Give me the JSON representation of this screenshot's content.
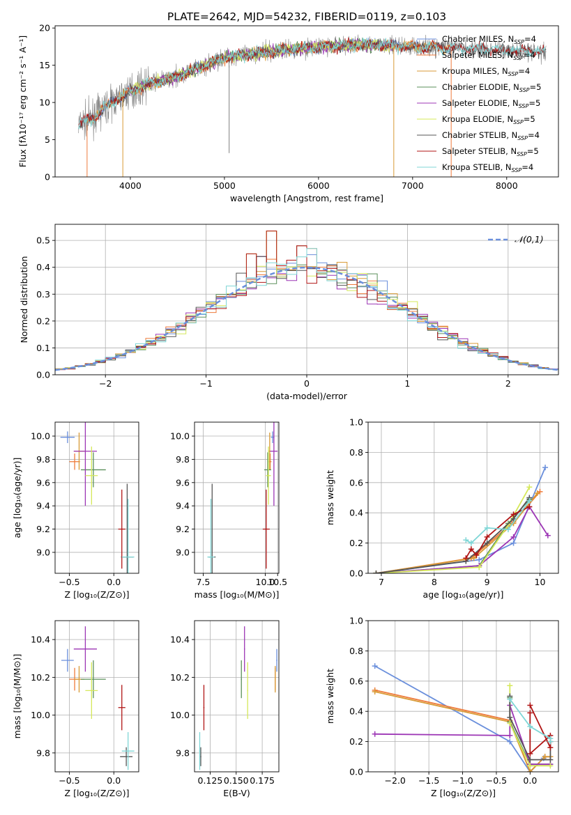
{
  "title": "PLATE=2642, MJD=54232, FIBERID=0119, z=0.103",
  "colors": {
    "Chabrier MILES": "#6a8fdc",
    "Salpeter MILES": "#ee7a3a",
    "Kroupa MILES": "#d89a35",
    "Chabrier ELODIE": "#5a8f5a",
    "Salpeter ELODIE": "#9c35b5",
    "Kroupa ELODIE": "#d5e85a",
    "Chabrier STELIB": "#555555",
    "Salpeter STELIB": "#b01515",
    "Kroupa STELIB": "#7fd6d6",
    "data": "#808080"
  },
  "chart_data": [
    {
      "id": "spectrum",
      "type": "line",
      "xlabel": "wavelength [Angstrom, rest frame]",
      "ylabel": "Flux [fλ10⁻¹⁷ erg cm⁻² s⁻¹ A⁻¹]",
      "xlim": [
        3200,
        8550
      ],
      "ylim": [
        0,
        20.3
      ],
      "xticks": [
        4000,
        5000,
        6000,
        7000,
        8000
      ],
      "yticks": [
        0,
        5,
        10,
        15,
        20
      ],
      "grid": false,
      "legend_position": "right",
      "legend": [
        {
          "name": "Chabrier MILES",
          "nssp": "4"
        },
        {
          "name": "Salpeter MILES",
          "nssp": "4"
        },
        {
          "name": "Kroupa MILES",
          "nssp": "4"
        },
        {
          "name": "Chabrier ELODIE",
          "nssp": "5"
        },
        {
          "name": "Salpeter ELODIE",
          "nssp": "5"
        },
        {
          "name": "Kroupa ELODIE",
          "nssp": "5"
        },
        {
          "name": "Chabrier STELIB",
          "nssp": "4"
        },
        {
          "name": "Salpeter STELIB",
          "nssp": "5"
        },
        {
          "name": "Kroupa STELIB",
          "nssp": "4"
        }
      ],
      "legend_subscript": "SSP",
      "continuum": {
        "x": [
          3450,
          3600,
          3800,
          4000,
          4200,
          4500,
          4800,
          5000,
          5300,
          5600,
          6000,
          6500,
          7000,
          7500,
          8000,
          8400
        ],
        "y": [
          7,
          8,
          10,
          11.5,
          12.5,
          13.5,
          15,
          16,
          16.5,
          17,
          17.5,
          17.8,
          17.5,
          17.3,
          17,
          16.8
        ]
      },
      "data_range": [
        3450,
        8420
      ],
      "model_ranges": {
        "Chabrier MILES": [
          3540,
          7400
        ],
        "Salpeter MILES": [
          3540,
          7400
        ],
        "Kroupa MILES": [
          3540,
          7400
        ],
        "Chabrier ELODIE": [
          4000,
          6800
        ],
        "Salpeter ELODIE": [
          4000,
          6800
        ],
        "Kroupa ELODIE": [
          4000,
          6800
        ],
        "Chabrier STELIB": [
          3450,
          8420
        ],
        "Salpeter STELIB": [
          3450,
          8420
        ],
        "Kroupa STELIB": [
          3450,
          8420
        ]
      },
      "dropouts": [
        {
          "x": 3540,
          "from": 7,
          "to": 0,
          "series": "Salpeter MILES"
        },
        {
          "x": 3920,
          "from": 11,
          "to": 0,
          "series": "Kroupa MILES"
        },
        {
          "x": 6800,
          "from": 17.5,
          "to": 0,
          "series": "Kroupa MILES"
        },
        {
          "x": 7410,
          "from": 17,
          "to": 0,
          "series": "Salpeter MILES"
        },
        {
          "x": 5050,
          "from": 15,
          "to": 3.2,
          "series": "data"
        }
      ]
    },
    {
      "id": "residuals",
      "type": "line",
      "xlabel": "(data-model)/error",
      "ylabel": "Normed distribution",
      "xlim": [
        -2.5,
        2.5
      ],
      "ylim": [
        0,
        0.56
      ],
      "xticks": [
        -2,
        -1,
        0,
        1,
        2
      ],
      "yticks": [
        0.0,
        0.1,
        0.2,
        0.3,
        0.4,
        0.5
      ],
      "grid": true,
      "legend_position": "top-right",
      "legend": [
        {
          "name": "𝒩(0,1)"
        }
      ],
      "bin_width": 0.1,
      "peak_bins": {
        "-0.3": 0.535,
        "0": 0.48,
        "0.1": 0.47,
        "-0.5": 0.45,
        "-0.4": 0.44
      }
    },
    {
      "id": "age-vs-Z",
      "type": "scatter",
      "xlabel": "Z [log₁₀(Z/Z⊙)]",
      "ylabel": "age [log₁₀(age/yr)]",
      "xlim": [
        -0.66,
        0.28
      ],
      "ylim": [
        8.82,
        10.12
      ],
      "xticks": [
        -0.5,
        0.0
      ],
      "yticks": [
        9.0,
        9.2,
        9.4,
        9.6,
        9.8,
        10.0
      ],
      "grid": true,
      "points": [
        {
          "series": "Chabrier MILES",
          "x": -0.52,
          "xerr": 0.08,
          "y": 9.99,
          "yerr": 0.05
        },
        {
          "series": "Salpeter MILES",
          "x": -0.44,
          "xerr": 0.06,
          "y": 9.78,
          "yerr": 0.07
        },
        {
          "series": "Kroupa MILES",
          "x": -0.39,
          "xerr": 0.06,
          "y": 9.87,
          "yerr": 0.16
        },
        {
          "series": "Chabrier ELODIE",
          "x": -0.23,
          "xerr": 0.14,
          "y": 9.71,
          "yerr": 0.15
        },
        {
          "series": "Salpeter ELODIE",
          "x": -0.32,
          "xerr": 0.13,
          "y": 9.87,
          "yerr": 0.47
        },
        {
          "series": "Kroupa ELODIE",
          "x": -0.25,
          "xerr": 0.07,
          "y": 9.66,
          "yerr": 0.25
        },
        {
          "series": "Chabrier STELIB",
          "x": 0.15,
          "xerr": 0.07,
          "y": 8.96,
          "yerr": 0.63
        },
        {
          "series": "Salpeter STELIB",
          "x": 0.09,
          "xerr": 0.04,
          "y": 9.2,
          "yerr": 0.34
        },
        {
          "series": "Kroupa STELIB",
          "x": 0.16,
          "xerr": 0.07,
          "y": 8.96,
          "yerr": 0.5
        }
      ]
    },
    {
      "id": "age-vs-mass",
      "type": "scatter",
      "xlabel": "mass [log₁₀(M/M⊙)]",
      "ylabel": "",
      "xlim": [
        7.15,
        10.55
      ],
      "ylim": [
        8.82,
        10.12
      ],
      "xticks": [
        7.5,
        10.0,
        10.5
      ],
      "yticks": [
        9.0,
        9.2,
        9.4,
        9.6,
        9.8,
        10.0
      ],
      "grid": true,
      "points": [
        {
          "series": "Chabrier MILES",
          "x": 10.3,
          "xerr": 0.07,
          "y": 9.99,
          "yerr": 0.05
        },
        {
          "series": "Salpeter MILES",
          "x": 10.2,
          "xerr": 0.05,
          "y": 9.78,
          "yerr": 0.07
        },
        {
          "series": "Kroupa MILES",
          "x": 10.18,
          "xerr": 0.05,
          "y": 9.87,
          "yerr": 0.16
        },
        {
          "series": "Chabrier ELODIE",
          "x": 10.1,
          "xerr": 0.14,
          "y": 9.71,
          "yerr": 0.15
        },
        {
          "series": "Salpeter ELODIE",
          "x": 10.35,
          "xerr": 0.15,
          "y": 9.87,
          "yerr": 0.47
        },
        {
          "series": "Kroupa ELODIE",
          "x": 10.13,
          "xerr": 0.1,
          "y": 9.66,
          "yerr": 0.25
        },
        {
          "series": "Chabrier STELIB",
          "x": 7.86,
          "xerr": 0.14,
          "y": 8.96,
          "yerr": 0.63
        },
        {
          "series": "Salpeter STELIB",
          "x": 10.04,
          "xerr": 0.14,
          "y": 9.2,
          "yerr": 0.34
        },
        {
          "series": "Kroupa STELIB",
          "x": 7.81,
          "xerr": 0.14,
          "y": 8.96,
          "yerr": 0.5
        }
      ]
    },
    {
      "id": "weight-vs-age",
      "type": "line",
      "xlabel": "age [log₁₀(age/yr)]",
      "ylabel": "mass weight",
      "xlim": [
        6.75,
        10.35
      ],
      "ylim": [
        0,
        1.0
      ],
      "xticks": [
        7,
        8,
        9,
        10
      ],
      "yticks": [
        0.0,
        0.2,
        0.4,
        0.6,
        0.8,
        1.0
      ],
      "grid": true,
      "series": [
        {
          "name": "Chabrier MILES",
          "x": [
            6.9,
            8.85,
            9.5,
            10.1
          ],
          "y": [
            0.0,
            0.09,
            0.2,
            0.7
          ]
        },
        {
          "name": "Salpeter MILES",
          "x": [
            6.9,
            8.7,
            9.5,
            10.0
          ],
          "y": [
            0.0,
            0.1,
            0.34,
            0.54
          ]
        },
        {
          "name": "Kroupa MILES",
          "x": [
            6.9,
            8.75,
            9.5,
            9.95
          ],
          "y": [
            0.0,
            0.1,
            0.33,
            0.53
          ]
        },
        {
          "name": "Chabrier ELODIE",
          "x": [
            6.9,
            8.85,
            9.4,
            9.8
          ],
          "y": [
            0.0,
            0.05,
            0.33,
            0.49
          ]
        },
        {
          "name": "Salpeter ELODIE",
          "x": [
            6.9,
            8.85,
            9.5,
            9.8,
            10.15
          ],
          "y": [
            0.0,
            0.05,
            0.24,
            0.44,
            0.25
          ]
        },
        {
          "name": "Kroupa ELODIE",
          "x": [
            6.9,
            8.85,
            9.4,
            9.8
          ],
          "y": [
            0.0,
            0.04,
            0.32,
            0.57
          ]
        },
        {
          "name": "Chabrier STELIB",
          "x": [
            6.9,
            8.6,
            9.0,
            9.5,
            9.8
          ],
          "y": [
            0.0,
            0.08,
            0.2,
            0.36,
            0.5
          ]
        },
        {
          "name": "Salpeter STELIB",
          "x": [
            8.6,
            8.7,
            8.8,
            9.0,
            9.5,
            9.8
          ],
          "y": [
            0.1,
            0.16,
            0.12,
            0.24,
            0.39,
            0.44
          ]
        },
        {
          "name": "Kroupa STELIB",
          "x": [
            8.6,
            8.7,
            9.0,
            9.4,
            9.8
          ],
          "y": [
            0.22,
            0.2,
            0.3,
            0.29,
            0.48
          ]
        }
      ]
    },
    {
      "id": "mass-vs-Z",
      "type": "scatter",
      "xlabel": "Z [log₁₀(Z/Z⊙)]",
      "ylabel": "mass [log₁₀(M/M⊙)]",
      "xlim": [
        -0.66,
        0.28
      ],
      "ylim": [
        9.7,
        10.5
      ],
      "xticks": [
        -0.5,
        0.0
      ],
      "yticks": [
        9.8,
        10.0,
        10.2,
        10.4
      ],
      "grid": true,
      "points": [
        {
          "series": "Chabrier MILES",
          "x": -0.52,
          "xerr": 0.07,
          "y": 10.29,
          "yerr": 0.06
        },
        {
          "series": "Salpeter MILES",
          "x": -0.44,
          "xerr": 0.06,
          "y": 10.19,
          "yerr": 0.06
        },
        {
          "series": "Kroupa MILES",
          "x": -0.39,
          "xerr": 0.06,
          "y": 10.19,
          "yerr": 0.07
        },
        {
          "series": "Chabrier ELODIE",
          "x": -0.23,
          "xerr": 0.14,
          "y": 10.19,
          "yerr": 0.1
        },
        {
          "series": "Salpeter ELODIE",
          "x": -0.32,
          "xerr": 0.13,
          "y": 10.35,
          "yerr": 0.12
        },
        {
          "series": "Kroupa ELODIE",
          "x": -0.25,
          "xerr": 0.07,
          "y": 10.13,
          "yerr": 0.15
        },
        {
          "series": "Chabrier STELIB",
          "x": 0.14,
          "xerr": 0.07,
          "y": 9.78,
          "yerr": 0.05
        },
        {
          "series": "Salpeter STELIB",
          "x": 0.09,
          "xerr": 0.04,
          "y": 10.04,
          "yerr": 0.12
        },
        {
          "series": "Kroupa STELIB",
          "x": 0.16,
          "xerr": 0.07,
          "y": 9.81,
          "yerr": 0.1
        }
      ]
    },
    {
      "id": "mass-vs-ebv",
      "type": "scatter",
      "xlabel": "E(B-V)",
      "ylabel": "",
      "xlim": [
        0.11,
        0.191
      ],
      "ylim": [
        9.7,
        10.5
      ],
      "xticks": [
        0.125,
        0.15,
        0.175
      ],
      "yticks": [
        9.8,
        10.0,
        10.2,
        10.4
      ],
      "grid": true,
      "points": [
        {
          "series": "Chabrier MILES",
          "x": 0.189,
          "xerr": 0.0005,
          "y": 10.29,
          "yerr": 0.06
        },
        {
          "series": "Salpeter MILES",
          "x": 0.1875,
          "xerr": 0.0005,
          "y": 10.19,
          "yerr": 0.06
        },
        {
          "series": "Kroupa MILES",
          "x": 0.1875,
          "xerr": 0.0005,
          "y": 10.19,
          "yerr": 0.07
        },
        {
          "series": "Chabrier ELODIE",
          "x": 0.155,
          "xerr": 0.0005,
          "y": 10.19,
          "yerr": 0.1
        },
        {
          "series": "Salpeter ELODIE",
          "x": 0.158,
          "xerr": 0.0005,
          "y": 10.35,
          "yerr": 0.12
        },
        {
          "series": "Kroupa ELODIE",
          "x": 0.161,
          "xerr": 0.0005,
          "y": 10.13,
          "yerr": 0.15
        },
        {
          "series": "Chabrier STELIB",
          "x": 0.116,
          "xerr": 0.0005,
          "y": 9.78,
          "yerr": 0.05
        },
        {
          "series": "Salpeter STELIB",
          "x": 0.119,
          "xerr": 0.0005,
          "y": 10.04,
          "yerr": 0.12
        },
        {
          "series": "Kroupa STELIB",
          "x": 0.115,
          "xerr": 0.0005,
          "y": 9.81,
          "yerr": 0.1
        }
      ]
    },
    {
      "id": "weight-vs-Z",
      "type": "line",
      "xlabel": "Z [log₁₀(Z/Z⊙)]",
      "ylabel": "mass weight",
      "xlim": [
        -2.4,
        0.42
      ],
      "ylim": [
        0,
        1.0
      ],
      "xticks": [
        -2.0,
        -1.5,
        -1.0,
        -0.5,
        0.0
      ],
      "yticks": [
        0.0,
        0.2,
        0.4,
        0.6,
        0.8,
        1.0
      ],
      "grid": true,
      "series": [
        {
          "name": "Chabrier MILES",
          "x": [
            -2.3,
            -0.3,
            0.0,
            0.2
          ],
          "y": [
            0.7,
            0.2,
            0.0,
            0.09
          ]
        },
        {
          "name": "Salpeter MILES",
          "x": [
            -2.3,
            -0.3,
            0.0,
            0.22,
            0.3
          ],
          "y": [
            0.54,
            0.34,
            0.0,
            0.1,
            0.1
          ]
        },
        {
          "name": "Kroupa MILES",
          "x": [
            -2.3,
            -0.3,
            0.0,
            0.22,
            0.3
          ],
          "y": [
            0.53,
            0.33,
            0.0,
            0.1,
            0.1
          ]
        },
        {
          "name": "Chabrier ELODIE",
          "x": [
            -0.3,
            -0.3,
            0.0,
            0.3
          ],
          "y": [
            0.49,
            0.33,
            0.05,
            0.05
          ]
        },
        {
          "name": "Salpeter ELODIE",
          "x": [
            -2.3,
            -0.3,
            -0.3,
            0.0,
            0.3
          ],
          "y": [
            0.25,
            0.24,
            0.44,
            0.05,
            0.05
          ]
        },
        {
          "name": "Kroupa ELODIE",
          "x": [
            -0.3,
            -0.3,
            0.0,
            0.3
          ],
          "y": [
            0.57,
            0.32,
            0.04,
            0.04
          ]
        },
        {
          "name": "Chabrier STELIB",
          "x": [
            -0.3,
            -0.3,
            0.0,
            0.3,
            0.3
          ],
          "y": [
            0.5,
            0.36,
            0.08,
            0.08,
            0.2
          ]
        },
        {
          "name": "Salpeter STELIB",
          "x": [
            0.0,
            0.0,
            0.3,
            0.3,
            0.0
          ],
          "y": [
            0.39,
            0.12,
            0.24,
            0.16,
            0.44
          ]
        },
        {
          "name": "Kroupa STELIB",
          "x": [
            -0.3,
            0.0,
            0.3,
            0.3
          ],
          "y": [
            0.48,
            0.3,
            0.22,
            0.2
          ]
        }
      ]
    }
  ]
}
